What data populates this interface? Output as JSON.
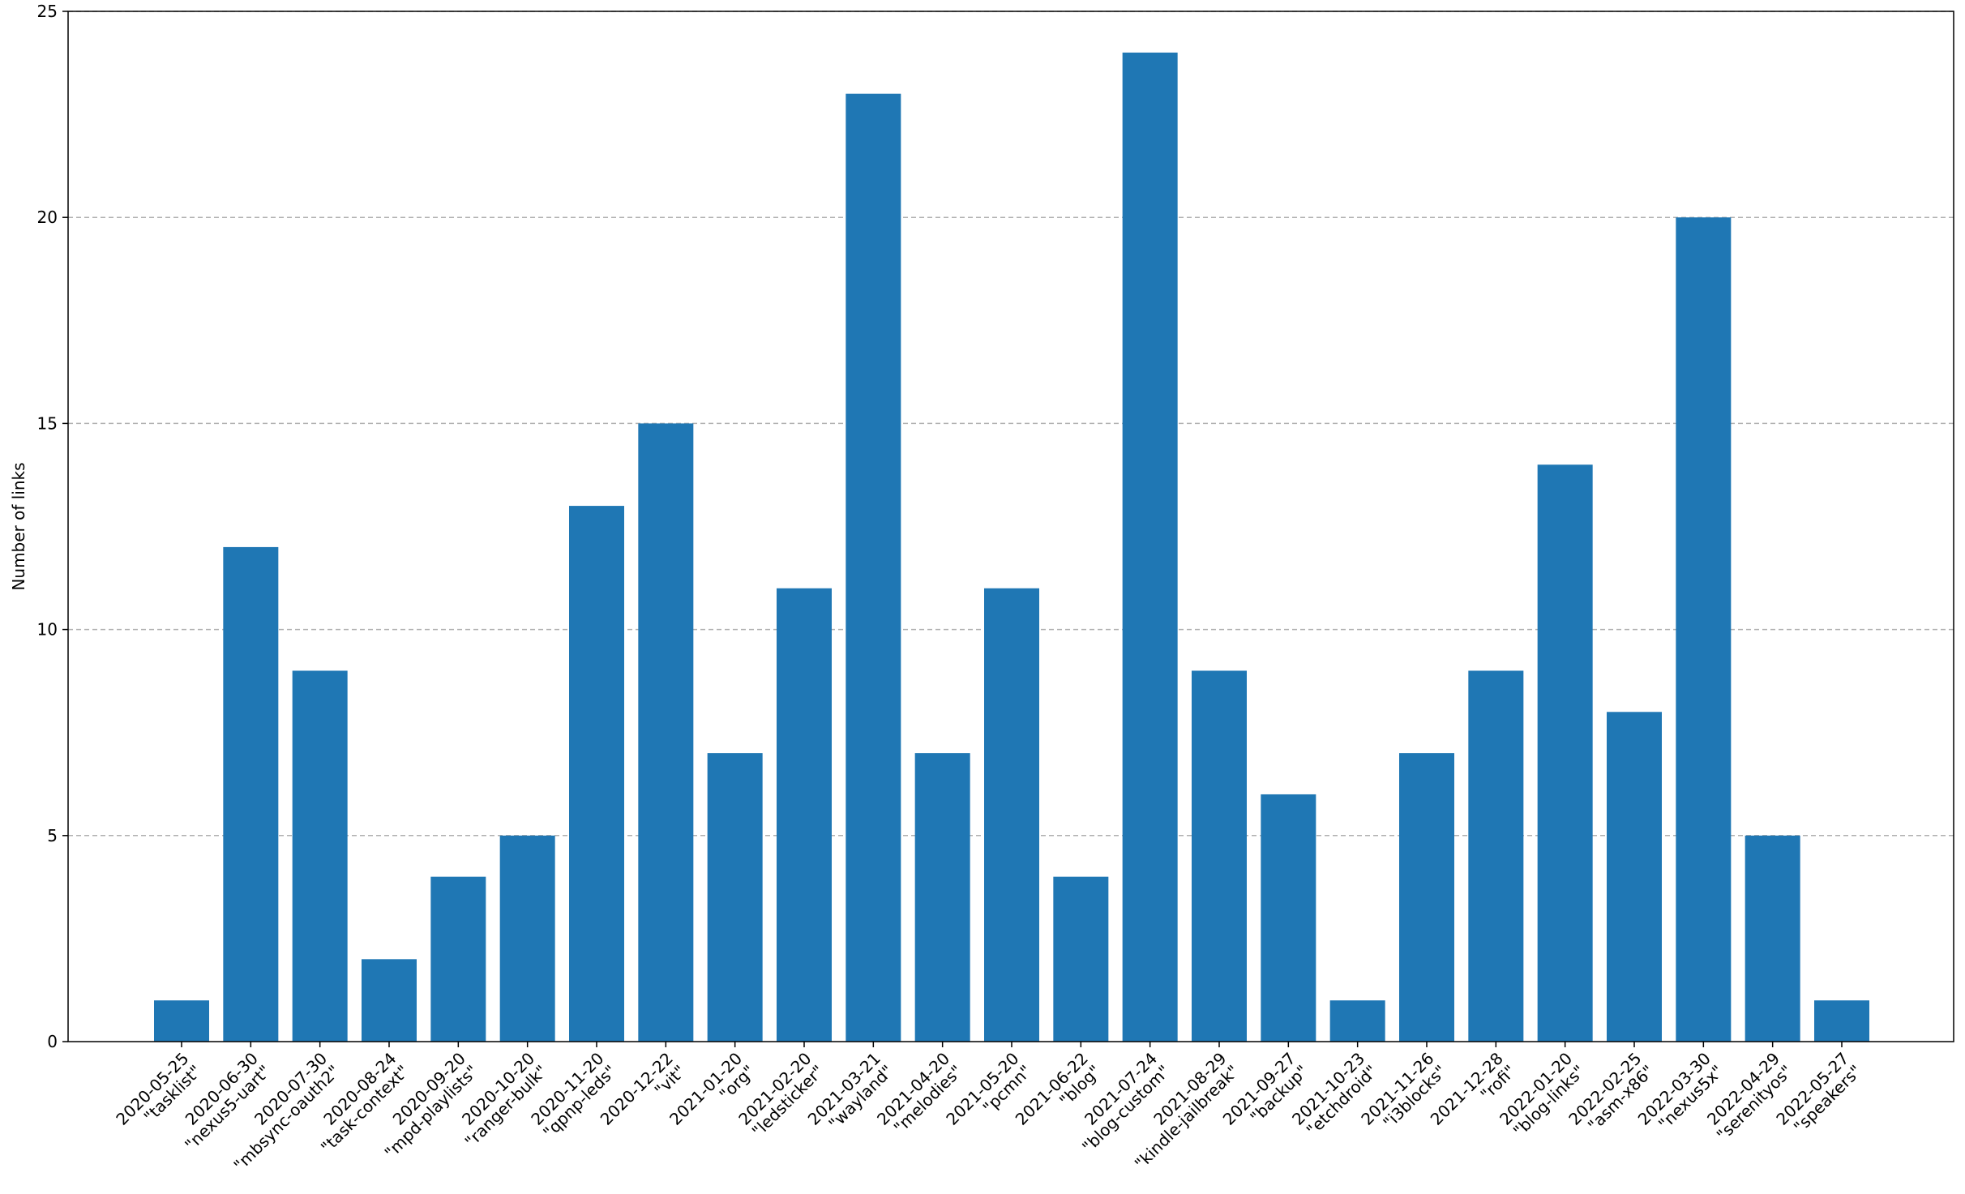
{
  "chart_data": {
    "type": "bar",
    "title": "",
    "xlabel": "",
    "ylabel": "Number of links",
    "ylim": [
      0,
      25
    ],
    "yticks": [
      0,
      5,
      10,
      15,
      20,
      25
    ],
    "grid": "y-axis dashed",
    "bar_color": "#1f77b4",
    "categories": [
      [
        "2020-05-25",
        "\"tasklist\""
      ],
      [
        "2020-06-30",
        "\"nexus5-uart\""
      ],
      [
        "2020-07-30",
        "\"mbsync-oauth2\""
      ],
      [
        "2020-08-24",
        "\"task-context\""
      ],
      [
        "2020-09-20",
        "\"mpd-playlists\""
      ],
      [
        "2020-10-20",
        "\"ranger-bulk\""
      ],
      [
        "2020-11-20",
        "\"qpnp-leds\""
      ],
      [
        "2020-12-22",
        "\"vit\""
      ],
      [
        "2021-01-20",
        "\"org\""
      ],
      [
        "2021-02-20",
        "\"ledsticker\""
      ],
      [
        "2021-03-21",
        "\"wayland\""
      ],
      [
        "2021-04-20",
        "\"melodies\""
      ],
      [
        "2021-05-20",
        "\"pcmn\""
      ],
      [
        "2021-06-22",
        "\"blog\""
      ],
      [
        "2021-07-24",
        "\"blog-custom\""
      ],
      [
        "2021-08-29",
        "\"kindle-jailbreak\""
      ],
      [
        "2021-09-27",
        "\"backup\""
      ],
      [
        "2021-10-23",
        "\"etchdroid\""
      ],
      [
        "2021-11-26",
        "\"i3blocks\""
      ],
      [
        "2021-12-28",
        "\"rofi\""
      ],
      [
        "2022-01-20",
        "\"blog-links\""
      ],
      [
        "2022-02-25",
        "\"asm-x86\""
      ],
      [
        "2022-03-30",
        "\"nexus5x\""
      ],
      [
        "2022-04-29",
        "\"serenityos\""
      ],
      [
        "2022-05-27",
        "\"speakers\""
      ]
    ],
    "values": [
      1,
      12,
      9,
      2,
      4,
      5,
      13,
      15,
      7,
      11,
      23,
      7,
      11,
      4,
      24,
      9,
      6,
      1,
      7,
      9,
      14,
      8,
      20,
      5,
      1
    ]
  }
}
